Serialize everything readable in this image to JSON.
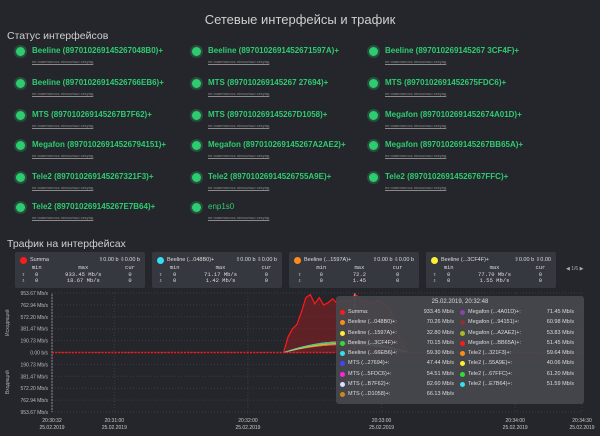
{
  "title": "Сетевые интерфейсы и трафик",
  "status_heading": "Статус интерфейсов",
  "traffic_heading": "Трафик на интерфейсах",
  "status_color": "#2ecc71",
  "interfaces": [
    {
      "name": "Beeline (897010269145267048B0)+",
      "sub": "не изменялось несколько секунд"
    },
    {
      "name": "Beeline (8970102691452671597A)+",
      "sub": "не изменялось несколько секунд"
    },
    {
      "name": "Beeline (897010269145267 3CF4F)+",
      "sub": "не изменялось несколько секунд"
    },
    {
      "name": "Beeline (89701026914526766EB6)+",
      "sub": "не изменялось несколько секунд"
    },
    {
      "name": "MTS (897010269145267 27694)+",
      "sub": "не изменялось несколько секунд"
    },
    {
      "name": "MTS (8970102691452675FDC6)+",
      "sub": "не изменялось несколько секунд"
    },
    {
      "name": "MTS (897010269145267B7F62)+",
      "sub": "не изменялось несколько секунд"
    },
    {
      "name": "MTS (897010269145267D1058)+",
      "sub": "не изменялось несколько секунд"
    },
    {
      "name": "Megafon (8970102691452674A01D)+",
      "sub": "не изменялось несколько секунд"
    },
    {
      "name": "Megafon (89701026914526794151)+",
      "sub": "не изменялось несколько секунд"
    },
    {
      "name": "Megafon (897010269145267A2AE2)+",
      "sub": "не изменялось несколько секунд"
    },
    {
      "name": "Megafon (897010269145267BB65A)+",
      "sub": "не изменялось несколько секунд"
    },
    {
      "name": "Tele2 (897010269145267321F3)+",
      "sub": "не изменялось несколько секунд"
    },
    {
      "name": "Tele2 (89701026914526755A9E)+",
      "sub": "не изменялось несколько секунд"
    },
    {
      "name": "Tele2 (89701026914526767FFC)+",
      "sub": "не изменялось несколько секунд"
    },
    {
      "name": "Tele2 (897010269145267E7B64)+",
      "sub": "не изменялось несколько секунд"
    },
    {
      "name": "enp1s0",
      "sub": "не изменялось несколько секунд"
    }
  ],
  "cards": [
    {
      "name": "Summa",
      "color": "#ff1a1a",
      "up": "0.00 b",
      "down": "0.00 b",
      "h": [
        "min",
        "max",
        "cur"
      ],
      "out": [
        "0",
        "933.45 Mb/s",
        "0"
      ],
      "in": [
        "0",
        "18.67 Mb/s",
        "0"
      ]
    },
    {
      "name": "Beeline (...048B0)+",
      "color": "#33e0f0",
      "up": "0.00 b",
      "down": "0.00 b",
      "h": [
        "min",
        "max",
        "cur"
      ],
      "out": [
        "0",
        "71.17 Mb/s",
        "0"
      ],
      "in": [
        "0",
        "1.42 Mb/s",
        "0"
      ]
    },
    {
      "name": "Beeline (...1597A)+",
      "color": "#ff8c1a",
      "up": "0.00 b",
      "down": "0.00 b",
      "h": [
        "min",
        "max",
        "cur"
      ],
      "out": [
        "0",
        "72.2",
        "0"
      ],
      "in": [
        "0",
        "1.45",
        "0"
      ]
    },
    {
      "name": "Beeline (...3CF4F)+",
      "color": "#ffee33",
      "up": "0.00 b",
      "down": "0.00",
      "h": [
        "min",
        "max",
        "cur"
      ],
      "out": [
        "0",
        "77.70 Mb/s",
        "0"
      ],
      "in": [
        "0",
        "1.55 Mb/s",
        "0"
      ]
    }
  ],
  "pager": "1/6",
  "tooltip": {
    "time": "25.02.2019, 20:32:48",
    "rows": [
      {
        "name": "Summa:",
        "value": "933.45 Mb/s",
        "color": "#ff1a1a"
      },
      {
        "name": "Beeline (...048B0)+:",
        "value": "70.26 Mb/s",
        "color": "#ff8c1a"
      },
      {
        "name": "Beeline (...1597A)+:",
        "value": "32.80 Mb/s",
        "color": "#ffee33"
      },
      {
        "name": "Beeline (...3CF4F)+:",
        "value": "70.15 Mb/s",
        "color": "#33dd33"
      },
      {
        "name": "Beeline (...66EB6)+:",
        "value": "59.30 Mb/s",
        "color": "#33e0f0"
      },
      {
        "name": "MTS (...27694)+:",
        "value": "47.44 Mb/s",
        "color": "#4444ff"
      },
      {
        "name": "MTS (...5FDC6)+:",
        "value": "54.51 Mb/s",
        "color": "#ff22dd"
      },
      {
        "name": "MTS (...B7F62)+:",
        "value": "82.60 Mb/s",
        "color": "#ddddff"
      },
      {
        "name": "MTS (...D1058)+:",
        "value": "66.13 Mb/s",
        "color": "#cc8822"
      },
      {
        "name": "Megafon (...4A01D)+:",
        "value": "71.45 Mb/s",
        "color": "#8844aa"
      },
      {
        "name": "Megafon (...94151)+:",
        "value": "60.98 Mb/s",
        "color": "#883333"
      },
      {
        "name": "Megafon (...A2AE2)+:",
        "value": "53.83 Mb/s",
        "color": "#aabb22"
      },
      {
        "name": "Megafon (...BB65A)+:",
        "value": "51.45 Mb/s",
        "color": "#ff1a1a"
      },
      {
        "name": "Tele2 (...321F3)+:",
        "value": "59.64 Mb/s",
        "color": "#ff8c1a"
      },
      {
        "name": "Tele2 (...55A9E)+:",
        "value": "40.06 Mb/s",
        "color": "#ffee33"
      },
      {
        "name": "Tele2 (...67FFC)+:",
        "value": "61.20 Mb/s",
        "color": "#33dd33"
      },
      {
        "name": "Tele2 (...E7B64)+:",
        "value": "51.59 Mb/s",
        "color": "#33e0f0"
      }
    ]
  },
  "chart_data": {
    "type": "area",
    "ylabel_top": "Исходящий",
    "ylabel_bottom": "Входящий",
    "yticks": [
      "953.67 Mb/s",
      "762.94 Mb/s",
      "572.20 Mb/s",
      "381.47 Mb/s",
      "190.73 Mb/s",
      "0.00 b/s",
      "190.73 Mb/s",
      "381.47 Mb/s",
      "572.20 Mb/s",
      "762.94 Mb/s",
      "953.67 Mb/s"
    ],
    "ylim": [
      -953.67,
      953.67
    ],
    "xlim": [
      "20:30:32",
      "20:34:30"
    ],
    "xticks": [
      {
        "t": "20:30:32",
        "d": "25.02.2019"
      },
      {
        "t": "20:31:00",
        "d": "25.02.2019"
      },
      {
        "t": "20:32:00",
        "d": "25.02.2019"
      },
      {
        "t": "20:33:00",
        "d": "25.02.2019"
      },
      {
        "t": "20:34:00",
        "d": "25.02.2019"
      },
      {
        "t": "20:34:30",
        "d": "25.02.2019"
      }
    ],
    "hover_time": "20:32:48",
    "summa_color": "#ff1a1a",
    "summa": [
      [
        "20:32:16",
        0
      ],
      [
        "20:32:18",
        250
      ],
      [
        "20:32:20",
        380
      ],
      [
        "20:32:22",
        450
      ],
      [
        "20:32:24",
        650
      ],
      [
        "20:32:26",
        880
      ],
      [
        "20:32:28",
        930
      ],
      [
        "20:32:30",
        780
      ],
      [
        "20:32:32",
        880
      ],
      [
        "20:32:34",
        760
      ],
      [
        "20:32:36",
        800
      ],
      [
        "20:32:38",
        860
      ],
      [
        "20:32:40",
        790
      ],
      [
        "20:32:42",
        830
      ],
      [
        "20:32:44",
        820
      ],
      [
        "20:32:46",
        830
      ],
      [
        "20:32:48",
        933
      ],
      [
        "20:32:50",
        880
      ],
      [
        "20:32:52",
        800
      ],
      [
        "20:32:54",
        830
      ],
      [
        "20:32:56",
        780
      ],
      [
        "20:32:58",
        830
      ],
      [
        "20:33:00",
        810
      ],
      [
        "20:33:04",
        700
      ],
      [
        "20:33:06",
        400
      ],
      [
        "20:33:08",
        250
      ],
      [
        "20:33:12",
        0
      ]
    ]
  }
}
